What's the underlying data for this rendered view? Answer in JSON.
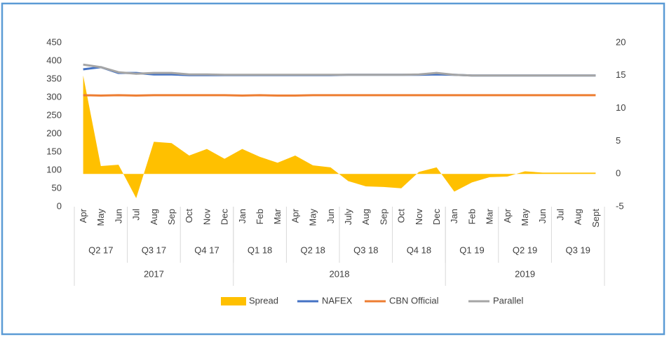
{
  "chart_data": {
    "type": "combo",
    "categories": [
      "Apr",
      "May",
      "Jun",
      "Jul",
      "Aug",
      "Sep",
      "Oct",
      "Nov",
      "Dec",
      "Jan",
      "Feb",
      "Mar",
      "Apr",
      "May",
      "Jun",
      "July",
      "Aug",
      "Sep",
      "Oct",
      "Nov",
      "Dec",
      "Jan",
      "Feb",
      "Mar",
      "Apr",
      "May",
      "Jun",
      "Jul",
      "Aug",
      "Sept"
    ],
    "quarters": [
      "Q2 17",
      "Q3 17",
      "Q4 17",
      "Q1 18",
      "Q2 18",
      "Q3 18",
      "Q4 18",
      "Q1 19",
      "Q2 19",
      "Q3 19"
    ],
    "years": [
      "2017",
      "2018",
      "2019"
    ],
    "series": [
      {
        "name": "Spread",
        "type": "area",
        "axis": "y2",
        "color": "#ffc000",
        "values": [
          15,
          1.2,
          1.4,
          -3.7,
          4.9,
          4.7,
          2.8,
          3.8,
          2.3,
          3.8,
          2.6,
          1.7,
          2.8,
          1.3,
          1.0,
          -1.1,
          -1.9,
          -2.0,
          -2.2,
          0.3,
          1.0,
          -2.7,
          -1.3,
          -0.5,
          -0.4,
          0.4,
          0.2,
          0.2,
          0.2,
          0.2
        ]
      },
      {
        "name": "NAFEX",
        "type": "line",
        "color": "#4472c4",
        "values": [
          377,
          383,
          367,
          367,
          363,
          363,
          361,
          361,
          361,
          361,
          361,
          361,
          361,
          361,
          361,
          362,
          362,
          362,
          362,
          362,
          363,
          362,
          360,
          360,
          360,
          360,
          360,
          360,
          360,
          360
        ]
      },
      {
        "name": "CBN Official",
        "type": "line",
        "color": "#ed7d31",
        "values": [
          306,
          305,
          306,
          305,
          306,
          306,
          306,
          306,
          306,
          305,
          306,
          305,
          305,
          306,
          306,
          306,
          306,
          306,
          306,
          306,
          306,
          306,
          306,
          306,
          306,
          306,
          306,
          306,
          306,
          306
        ]
      },
      {
        "name": "Parallel",
        "type": "line",
        "color": "#a5a5a5",
        "values": [
          390,
          383,
          369,
          365,
          367,
          367,
          363,
          363,
          362,
          362,
          362,
          362,
          362,
          362,
          362,
          362,
          362,
          362,
          362,
          363,
          367,
          362,
          360,
          360,
          360,
          360,
          360,
          360,
          360,
          360
        ]
      }
    ],
    "ylim": [
      0,
      450
    ],
    "yticks": [
      0,
      50,
      100,
      150,
      200,
      250,
      300,
      350,
      400,
      450
    ],
    "y2lim": [
      -5,
      20
    ],
    "y2ticks": [
      -5,
      0,
      5,
      10,
      15,
      20
    ],
    "legend": "bottom"
  }
}
